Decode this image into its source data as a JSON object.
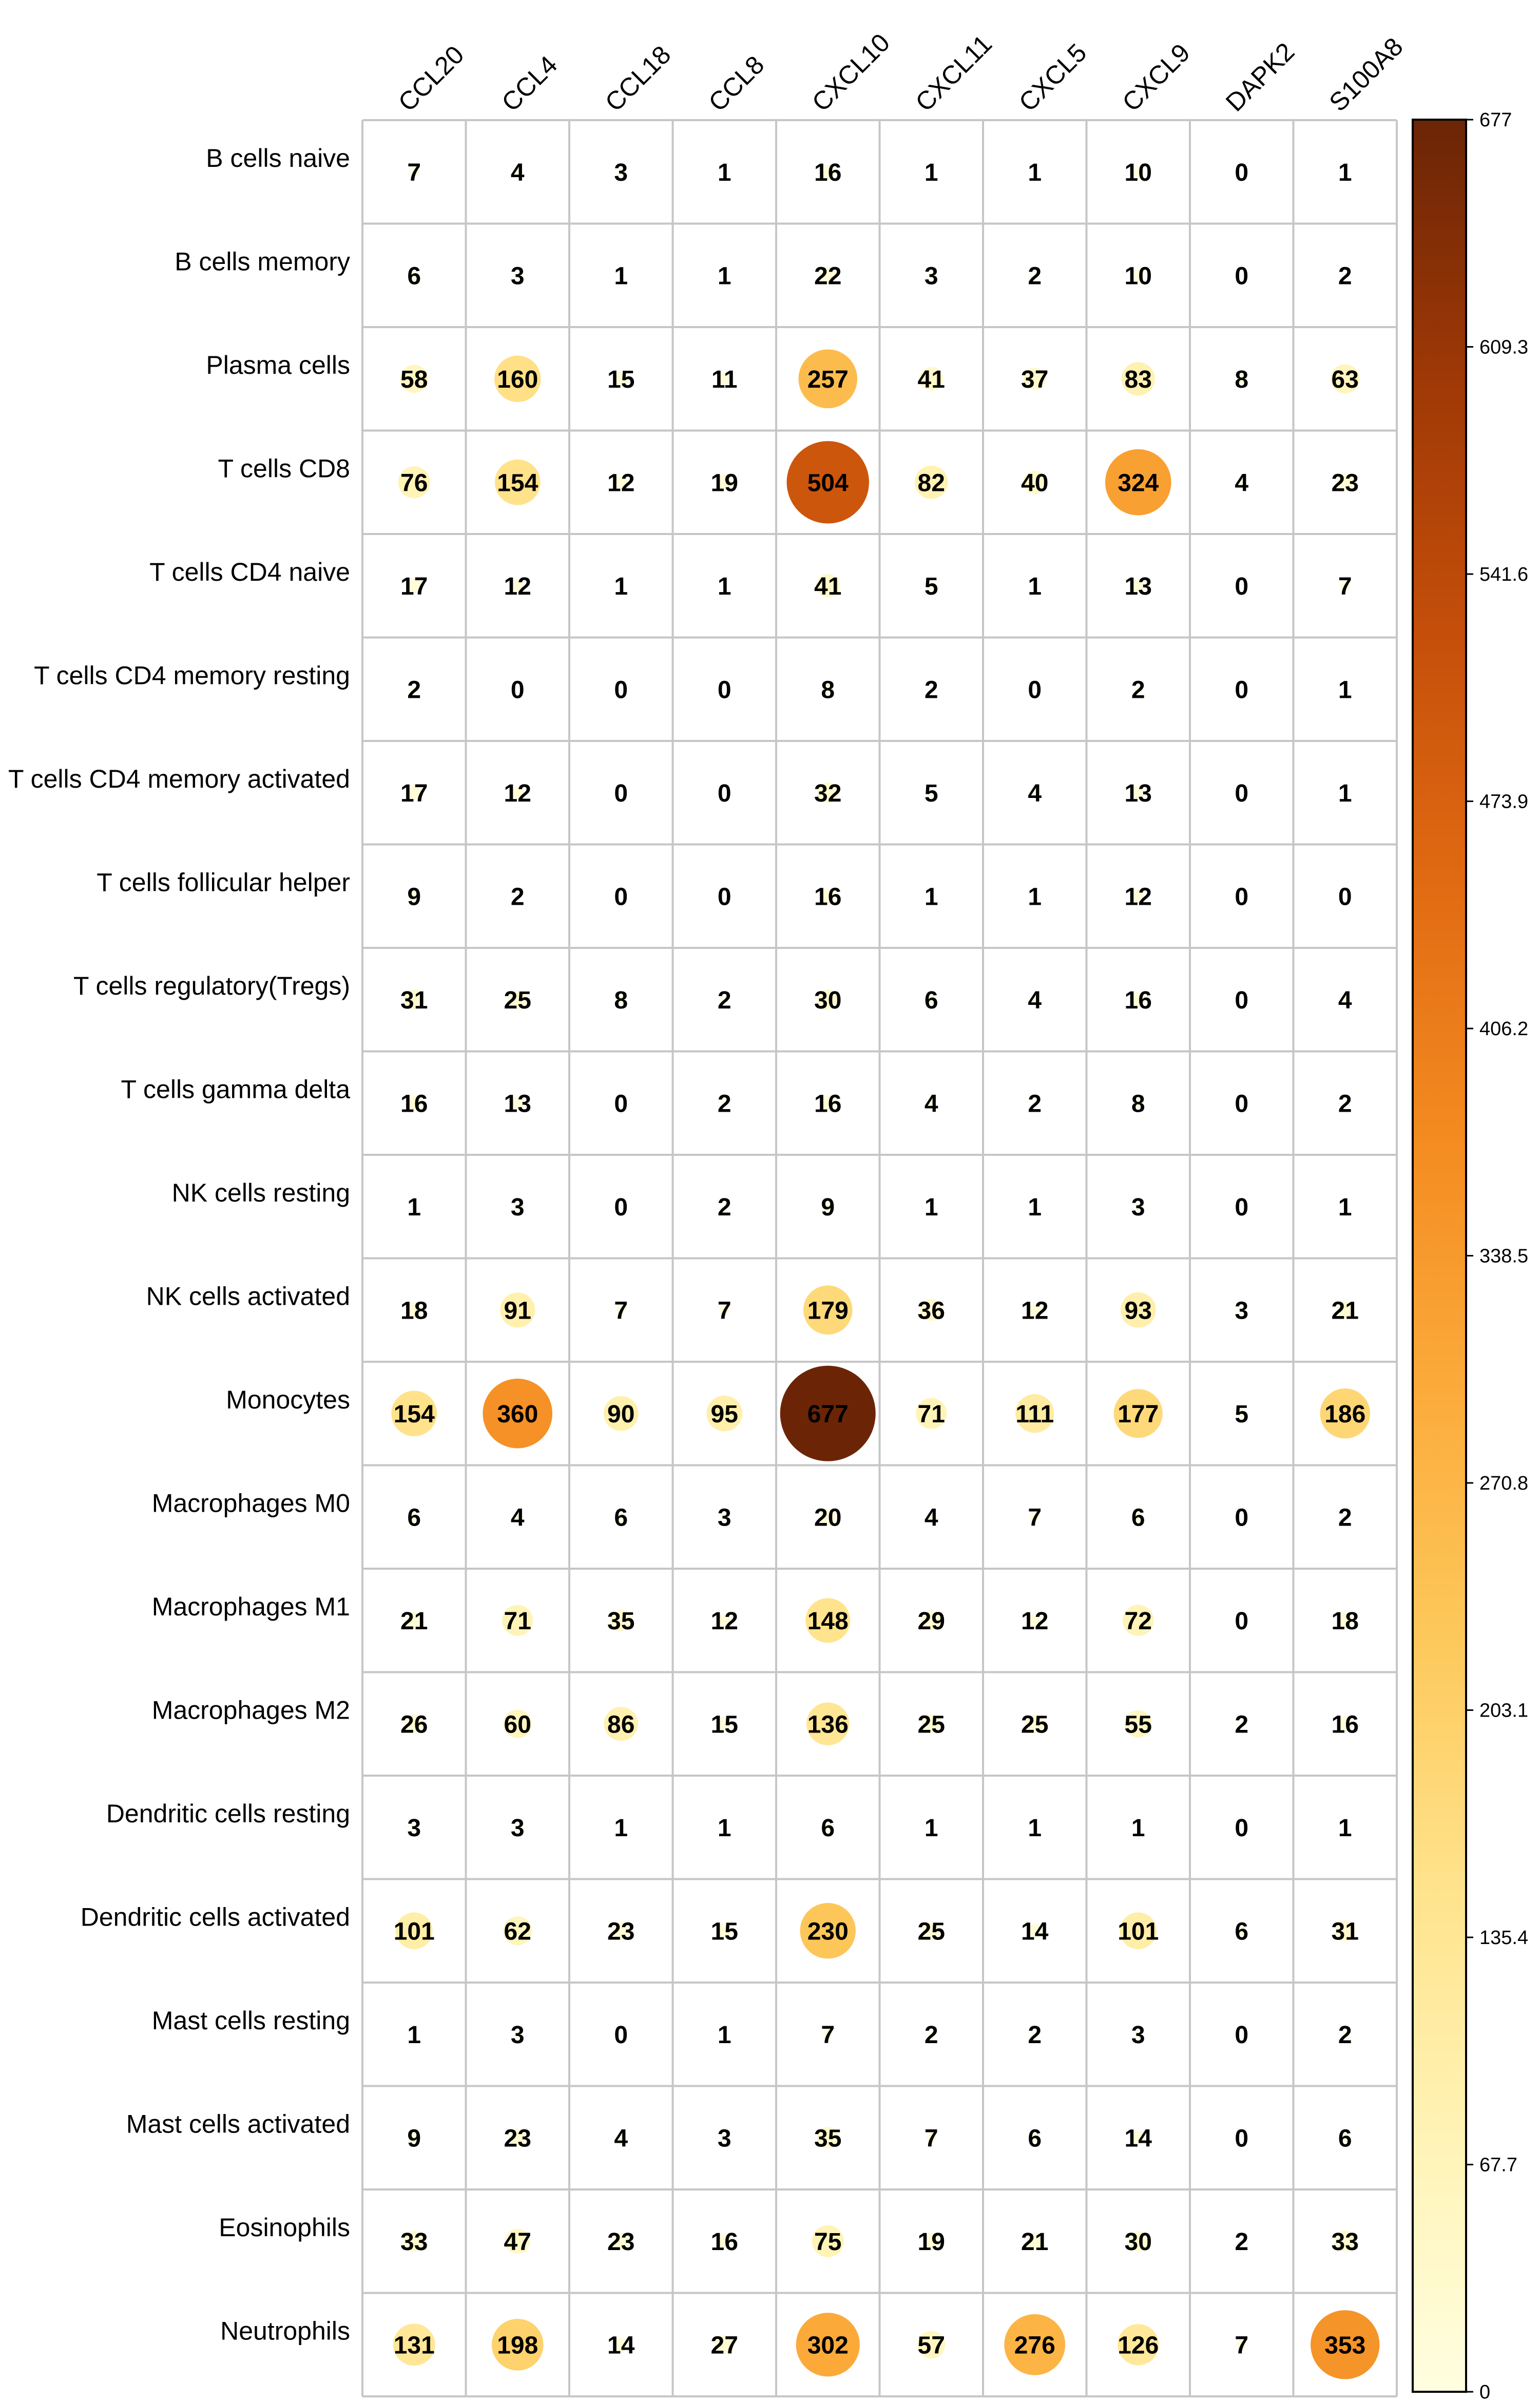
{
  "chart_data": {
    "type": "heatmap",
    "title": "",
    "xlabel": "",
    "ylabel": "",
    "columns": [
      "CCL20",
      "CCL4",
      "CCL18",
      "CCL8",
      "CXCL10",
      "CXCL11",
      "CXCL5",
      "CXCL9",
      "DAPK2",
      "S100A8"
    ],
    "rows": [
      "B cells naive",
      "B cells memory",
      "Plasma cells",
      "T cells CD8",
      "T cells CD4 naive",
      "T cells CD4 memory resting",
      "T cells CD4 memory activated",
      "T cells follicular helper",
      "T cells regulatory(Tregs)",
      "T cells gamma delta",
      "NK cells resting",
      "NK cells activated",
      "Monocytes",
      "Macrophages M0",
      "Macrophages M1",
      "Macrophages M2",
      "Dendritic cells resting",
      "Dendritic cells activated",
      "Mast cells resting",
      "Mast cells activated",
      "Eosinophils",
      "Neutrophils"
    ],
    "values": [
      [
        7,
        4,
        3,
        1,
        16,
        1,
        1,
        10,
        0,
        1
      ],
      [
        6,
        3,
        1,
        1,
        22,
        3,
        2,
        10,
        0,
        2
      ],
      [
        58,
        160,
        15,
        11,
        257,
        41,
        37,
        83,
        8,
        63
      ],
      [
        76,
        154,
        12,
        19,
        504,
        82,
        40,
        324,
        4,
        23
      ],
      [
        17,
        12,
        1,
        1,
        41,
        5,
        1,
        13,
        0,
        7
      ],
      [
        2,
        0,
        0,
        0,
        8,
        2,
        0,
        2,
        0,
        1
      ],
      [
        17,
        12,
        0,
        0,
        32,
        5,
        4,
        13,
        0,
        1
      ],
      [
        9,
        2,
        0,
        0,
        16,
        1,
        1,
        12,
        0,
        0
      ],
      [
        31,
        25,
        8,
        2,
        30,
        6,
        4,
        16,
        0,
        4
      ],
      [
        16,
        13,
        0,
        2,
        16,
        4,
        2,
        8,
        0,
        2
      ],
      [
        1,
        3,
        0,
        2,
        9,
        1,
        1,
        3,
        0,
        1
      ],
      [
        18,
        91,
        7,
        7,
        179,
        36,
        12,
        93,
        3,
        21
      ],
      [
        154,
        360,
        90,
        95,
        677,
        71,
        111,
        177,
        5,
        186
      ],
      [
        6,
        4,
        6,
        3,
        20,
        4,
        7,
        6,
        0,
        2
      ],
      [
        21,
        71,
        35,
        12,
        148,
        29,
        12,
        72,
        0,
        18
      ],
      [
        26,
        60,
        86,
        15,
        136,
        25,
        25,
        55,
        2,
        16
      ],
      [
        3,
        3,
        1,
        1,
        6,
        1,
        1,
        1,
        0,
        1
      ],
      [
        101,
        62,
        23,
        15,
        230,
        25,
        14,
        101,
        6,
        31
      ],
      [
        1,
        3,
        0,
        1,
        7,
        2,
        2,
        3,
        0,
        2
      ],
      [
        9,
        23,
        4,
        3,
        35,
        7,
        6,
        14,
        0,
        6
      ],
      [
        33,
        47,
        23,
        16,
        75,
        19,
        21,
        30,
        2,
        33
      ],
      [
        131,
        198,
        14,
        27,
        302,
        57,
        276,
        126,
        7,
        353
      ]
    ],
    "colorbar": {
      "min": 0,
      "max": 677,
      "ticks": [
        "0",
        "67.7",
        "135.4",
        "203.1",
        "270.8",
        "338.5",
        "406.2",
        "473.9",
        "541.6",
        "609.3",
        "677"
      ],
      "colors": [
        "#FFFEE0",
        "#FFF3B6",
        "#FFE38C",
        "#FDC85A",
        "#FBAA3A",
        "#F38A20",
        "#E06A12",
        "#C44E0A",
        "#9E3806",
        "#6B2506"
      ]
    },
    "grid": true,
    "encoding": "circle size and color proportional to value"
  }
}
